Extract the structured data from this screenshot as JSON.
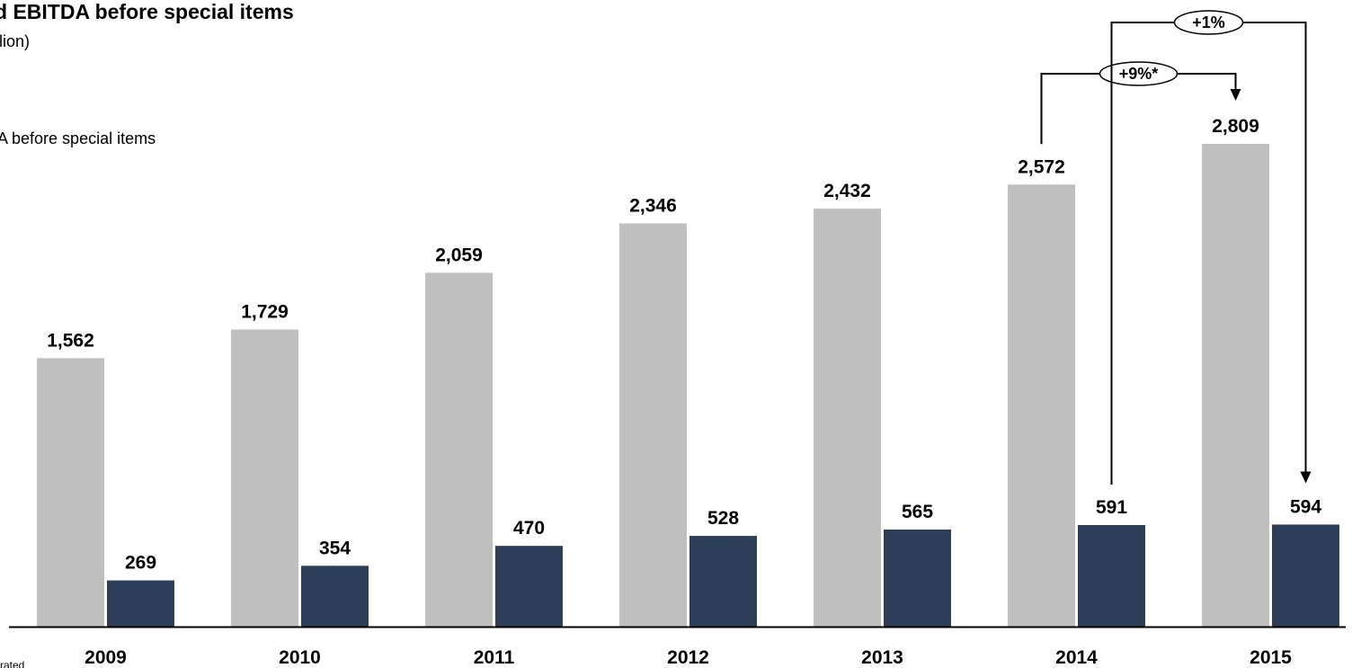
{
  "header": {
    "title": "d EBITDA before special items",
    "subtitle": "lion)",
    "series_label": "A before special items",
    "footnote": "rated"
  },
  "colors": {
    "series1": "#bfbfbf",
    "series2": "#2c3e58",
    "axis": "#000000"
  },
  "chart_data": {
    "type": "bar",
    "categories": [
      "2009",
      "2010",
      "2011",
      "2012",
      "2013",
      "2014",
      "2015"
    ],
    "series": [
      {
        "values": [
          1562,
          1729,
          2059,
          2346,
          2432,
          2572,
          2809
        ],
        "labels": [
          "1,562",
          "1,729",
          "2,059",
          "2,346",
          "2,432",
          "2,572",
          "2,809"
        ]
      },
      {
        "values": [
          269,
          354,
          470,
          528,
          565,
          591,
          594
        ],
        "labels": [
          "269",
          "354",
          "470",
          "528",
          "565",
          "591",
          "594"
        ]
      }
    ],
    "ylim": [
      0,
      2809
    ],
    "grid": false,
    "annotations": [
      {
        "text": "+9%*",
        "from_category": "2014",
        "to_category": "2015",
        "series": 1
      },
      {
        "text": "+1%",
        "from_category": "2014",
        "to_category": "2015",
        "series": 2
      }
    ]
  }
}
